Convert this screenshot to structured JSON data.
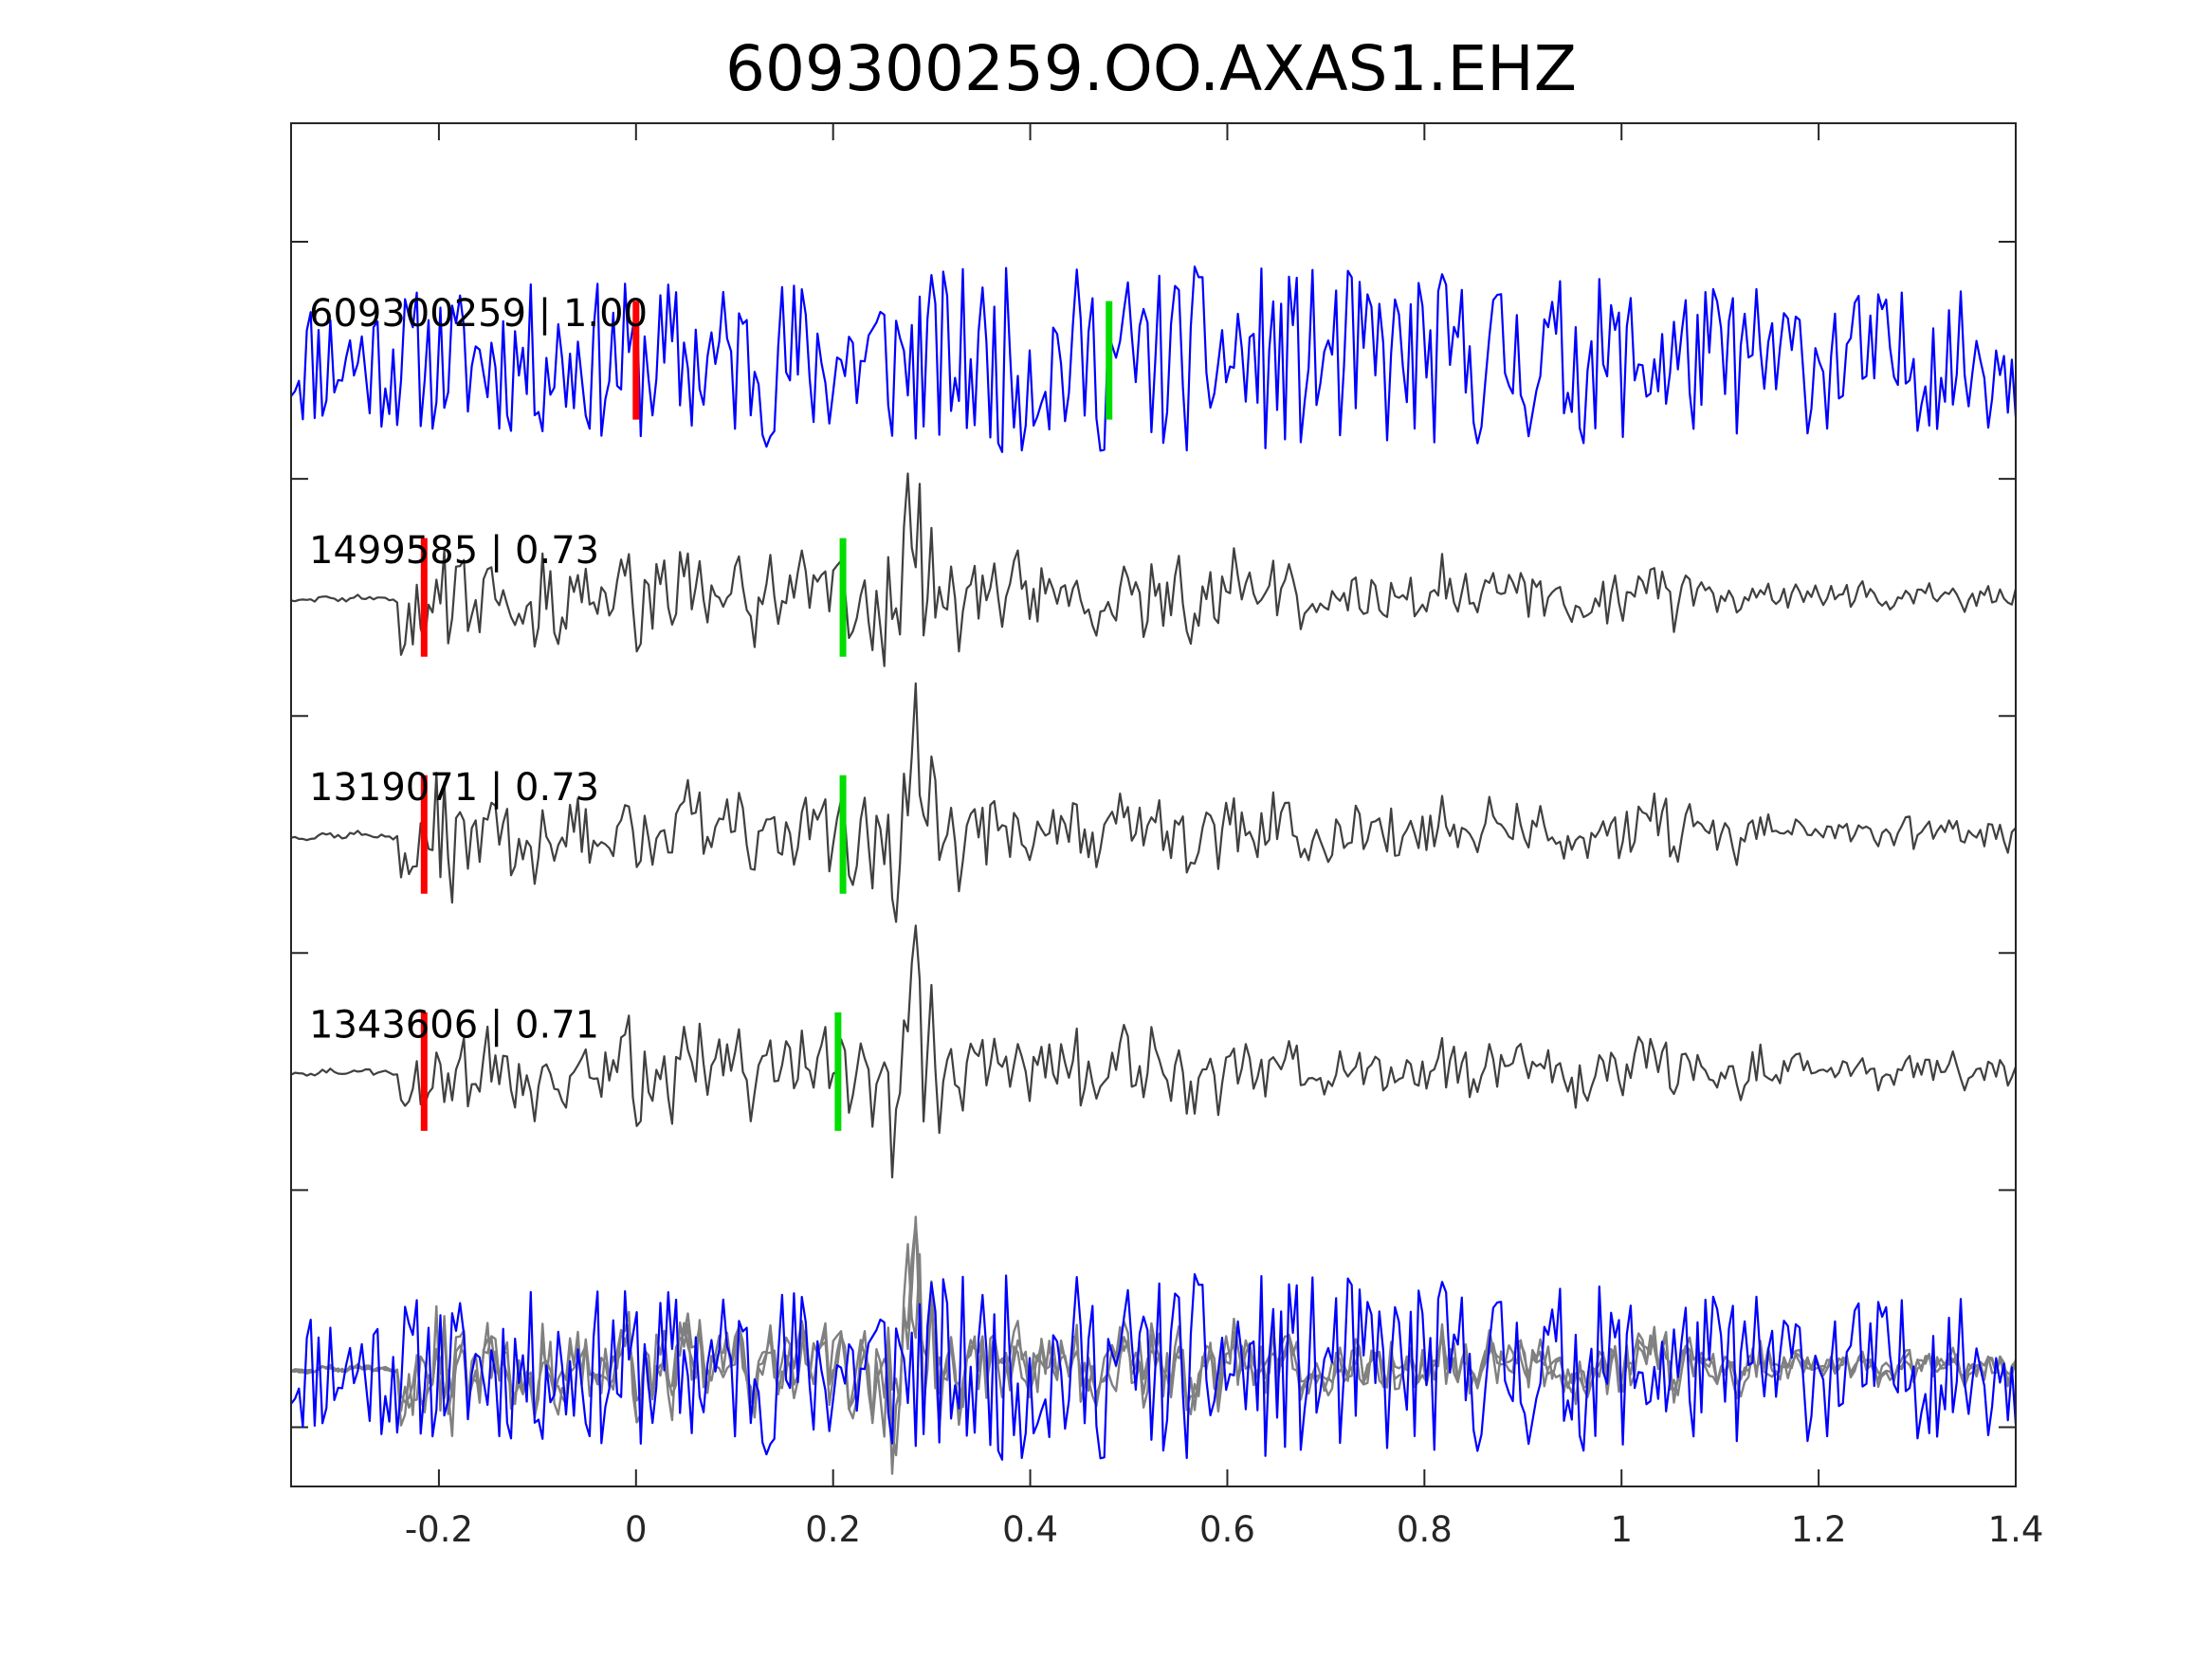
{
  "chart_data": {
    "type": "line",
    "title": "609300259.OO.AXAS1.EHZ",
    "xlabel": "",
    "ylabel": "",
    "xlim": [
      -0.35,
      1.4
    ],
    "x_ticks": [
      -0.2,
      0,
      0.2,
      0.4,
      0.6,
      0.8,
      1,
      1.2,
      1.4
    ],
    "x_tick_labels": [
      "-0.2",
      "0",
      "0.2",
      "0.4",
      "0.6",
      "0.8",
      "1",
      "1.2",
      "1.4"
    ],
    "ylim": [
      0,
      11.5
    ],
    "y_ticks": [
      0.5,
      2.5,
      4.5,
      6.5,
      8.5,
      10.5
    ],
    "y_tick_labels": [
      "",
      "",
      "",
      "",
      "",
      ""
    ],
    "grid": false,
    "colors": {
      "template": "#0000ff",
      "match": "#404040",
      "overlay_match": "#808080",
      "p_pick": "#ff0000",
      "s_pick": "#00dd00",
      "axis": "#262626"
    },
    "traces": [
      {
        "event_id": "609300259",
        "cc": "1.00",
        "label": "609300259 | 1.00",
        "baseline": 9.5,
        "amplitude": 1.0,
        "color": "template",
        "p_pick": 0.0,
        "s_pick": 0.48,
        "seed": 11
      },
      {
        "event_id": "1499585",
        "cc": "0.73",
        "label": "1499585 | 0.73",
        "baseline": 7.5,
        "amplitude": 1.0,
        "color": "match",
        "p_pick": -0.215,
        "s_pick": 0.21,
        "seed": 23
      },
      {
        "event_id": "1319071",
        "cc": "0.73",
        "label": "1319071 | 0.73",
        "baseline": 5.5,
        "amplitude": 1.0,
        "color": "match",
        "p_pick": -0.215,
        "s_pick": 0.21,
        "seed": 37
      },
      {
        "event_id": "1343606",
        "cc": "0.71",
        "label": "1343606 | 0.71",
        "baseline": 3.5,
        "amplitude": 1.0,
        "color": "match",
        "p_pick": -0.215,
        "s_pick": 0.205,
        "seed": 51
      }
    ],
    "overlay": {
      "baseline": 1.0,
      "amplitude": 1.0
    }
  }
}
